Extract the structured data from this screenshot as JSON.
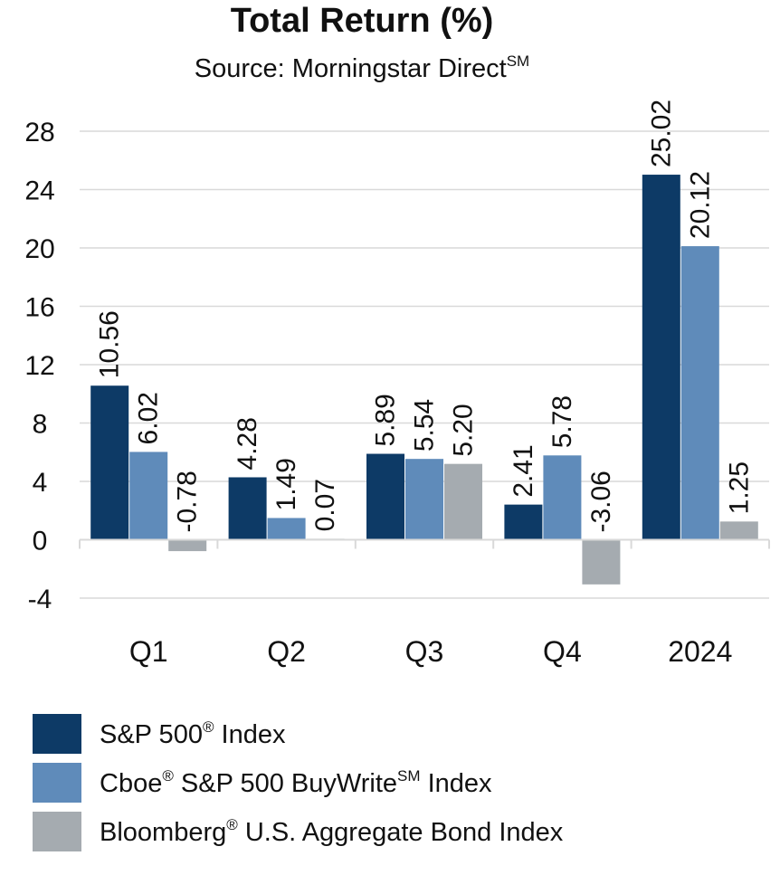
{
  "chart_data": {
    "type": "bar",
    "title": "Total Return (%)",
    "subtitle": "Source: Morningstar Direct",
    "subtitle_sup": "SM",
    "categories": [
      "Q1",
      "Q2",
      "Q3",
      "Q4",
      "2024"
    ],
    "ylim": [
      -4,
      28
    ],
    "yticks": [
      28,
      24,
      20,
      16,
      12,
      8,
      4,
      0,
      -4
    ],
    "grid": true,
    "legend_position": "bottom",
    "series": [
      {
        "name": "S&P 500® Index",
        "name_parts": [
          "S&P 500",
          "®",
          " Index"
        ],
        "color": "#0d3a66",
        "values": [
          10.56,
          4.28,
          5.89,
          2.41,
          25.02
        ],
        "labels": [
          "10.56",
          "4.28",
          "5.89",
          "2.41",
          "25.02"
        ]
      },
      {
        "name": "Cboe® S&P 500 BuyWriteSM Index",
        "name_parts": [
          "Cboe",
          "®",
          " S&P 500 BuyWrite",
          "SM",
          " Index"
        ],
        "color": "#5f8bba",
        "values": [
          6.02,
          1.49,
          5.54,
          5.78,
          20.12
        ],
        "labels": [
          "6.02",
          "1.49",
          "5.54",
          "5.78",
          "20.12"
        ]
      },
      {
        "name": "Bloomberg® U.S. Aggregate Bond Index",
        "name_parts": [
          "Bloomberg",
          "®",
          " U.S. Aggregate Bond Index"
        ],
        "color": "#a5abb0",
        "values": [
          -0.78,
          0.07,
          5.2,
          -3.06,
          1.25
        ],
        "labels": [
          "-0.78",
          "0.07",
          "5.20",
          "-3.06",
          "1.25"
        ]
      }
    ]
  }
}
